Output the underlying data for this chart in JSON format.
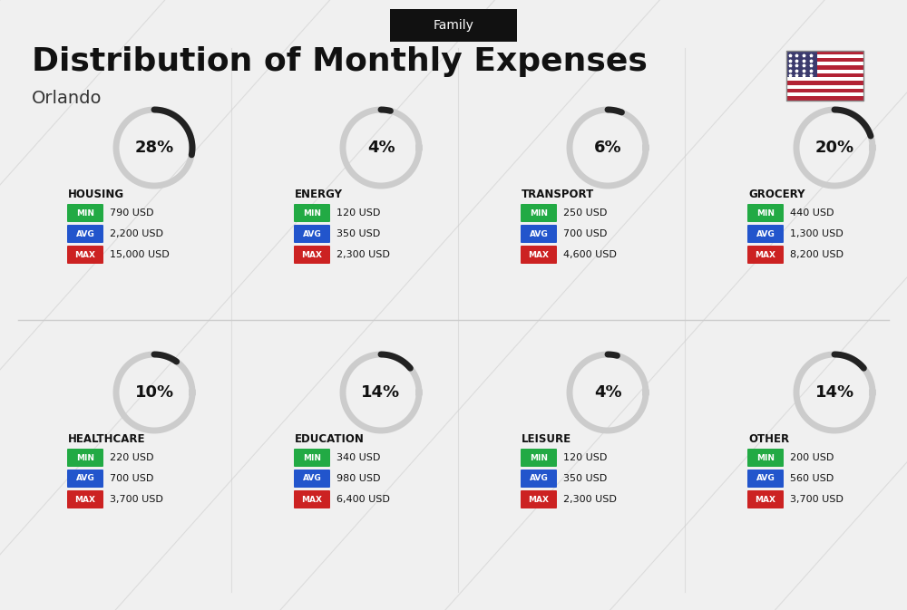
{
  "title": "Distribution of Monthly Expenses",
  "subtitle": "Orlando",
  "tag": "Family",
  "bg_color": "#f0f0f0",
  "categories": [
    {
      "name": "HOUSING",
      "pct": 28,
      "min": "790 USD",
      "avg": "2,200 USD",
      "max": "15,000 USD",
      "row": 0,
      "col": 0
    },
    {
      "name": "ENERGY",
      "pct": 4,
      "min": "120 USD",
      "avg": "350 USD",
      "max": "2,300 USD",
      "row": 0,
      "col": 1
    },
    {
      "name": "TRANSPORT",
      "pct": 6,
      "min": "250 USD",
      "avg": "700 USD",
      "max": "4,600 USD",
      "row": 0,
      "col": 2
    },
    {
      "name": "GROCERY",
      "pct": 20,
      "min": "440 USD",
      "avg": "1,300 USD",
      "max": "8,200 USD",
      "row": 0,
      "col": 3
    },
    {
      "name": "HEALTHCARE",
      "pct": 10,
      "min": "220 USD",
      "avg": "700 USD",
      "max": "3,700 USD",
      "row": 1,
      "col": 0
    },
    {
      "name": "EDUCATION",
      "pct": 14,
      "min": "340 USD",
      "avg": "980 USD",
      "max": "6,400 USD",
      "row": 1,
      "col": 1
    },
    {
      "name": "LEISURE",
      "pct": 4,
      "min": "120 USD",
      "avg": "350 USD",
      "max": "2,300 USD",
      "row": 1,
      "col": 2
    },
    {
      "name": "OTHER",
      "pct": 14,
      "min": "200 USD",
      "avg": "560 USD",
      "max": "3,700 USD",
      "row": 1,
      "col": 3
    }
  ],
  "min_color": "#22aa44",
  "avg_color": "#2255cc",
  "max_color": "#cc2222",
  "label_color": "#ffffff",
  "donut_color": "#222222",
  "donut_bg": "#cccccc",
  "title_color": "#111111",
  "subtitle_color": "#333333"
}
